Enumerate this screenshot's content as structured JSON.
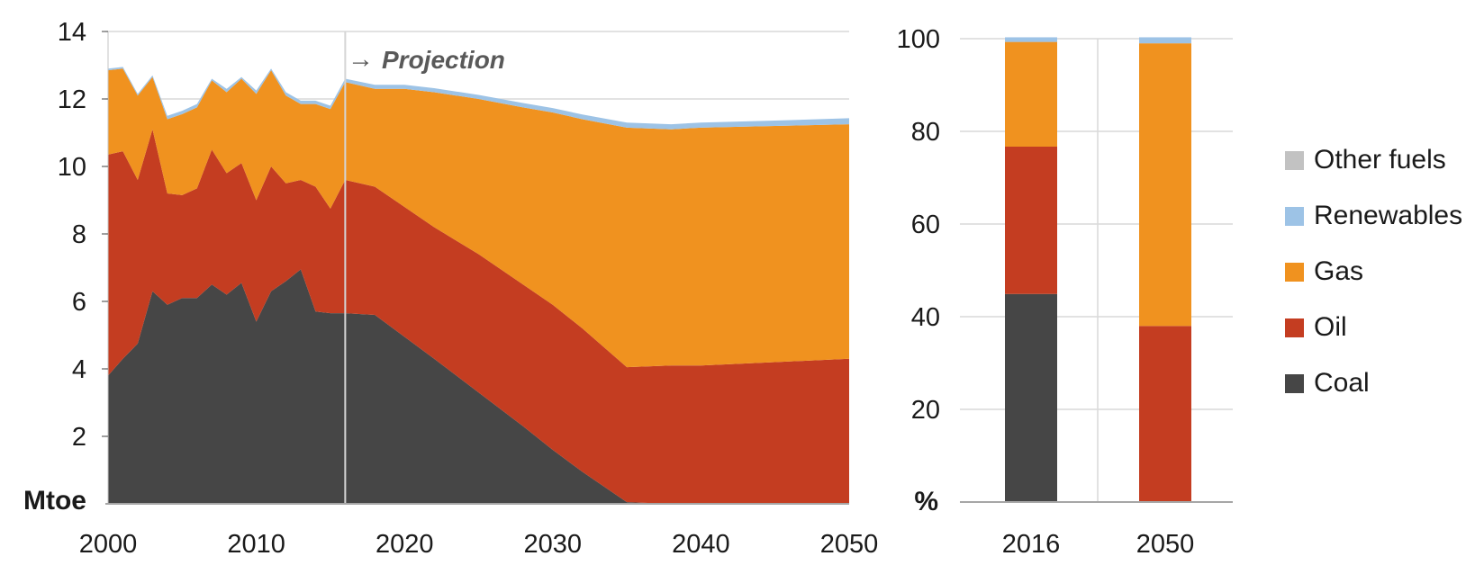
{
  "page": {
    "background": "#FFFFFF"
  },
  "colors": {
    "coal": "#464646",
    "oil": "#C43D21",
    "gas": "#F0921F",
    "renewables": "#9DC3E6",
    "other_fuels": "#C2C2C2",
    "grid": "#D9D9D9",
    "axis": "#A6A6A6",
    "y_axis_line": "#C6C6C6",
    "tick": "#808080",
    "projection_line": "#D5D5D5",
    "text": "#1A1A1A",
    "annotation": "#595959"
  },
  "left_chart": {
    "unit_label": "Mtoe",
    "annotation_arrow": "→",
    "annotation_label": "Projection"
  },
  "right_chart": {
    "unit_label": "%"
  },
  "legend": {
    "position": "right",
    "items": [
      {
        "label": "Other fuels",
        "color": "#C2C2C2"
      },
      {
        "label": "Renewables",
        "color": "#9DC3E6"
      },
      {
        "label": "Gas",
        "color": "#F0921F"
      },
      {
        "label": "Oil",
        "color": "#C43D21"
      },
      {
        "label": "Coal",
        "color": "#464646"
      }
    ]
  },
  "chart_data": [
    {
      "type": "area",
      "stacked": true,
      "title": "",
      "xlabel": "",
      "ylabel": "Mtoe",
      "ylim": [
        0,
        14
      ],
      "yticks": [
        2,
        4,
        6,
        8,
        10,
        12,
        14
      ],
      "xticks": [
        2000,
        2010,
        2020,
        2030,
        2040,
        2050
      ],
      "grid": "horizontal",
      "annotation": "→ Projection",
      "projection_start_year": 2016,
      "x": [
        2000,
        2001,
        2002,
        2003,
        2004,
        2005,
        2006,
        2007,
        2008,
        2009,
        2010,
        2011,
        2012,
        2013,
        2014,
        2015,
        2016,
        2018,
        2020,
        2022,
        2025,
        2028,
        2030,
        2032,
        2035,
        2038,
        2040,
        2045,
        2050
      ],
      "series": [
        {
          "name": "Coal",
          "color": "#464646",
          "values": [
            3.8,
            4.3,
            4.75,
            6.3,
            5.9,
            6.1,
            6.1,
            6.5,
            6.2,
            6.55,
            5.4,
            6.3,
            6.6,
            6.95,
            5.7,
            5.65,
            5.65,
            5.6,
            4.95,
            4.3,
            3.3,
            2.3,
            1.6,
            0.95,
            0.05,
            0,
            0,
            0,
            0
          ]
        },
        {
          "name": "Oil",
          "color": "#C43D21",
          "values": [
            6.55,
            6.15,
            4.85,
            4.8,
            3.3,
            3.05,
            3.25,
            4.0,
            3.6,
            3.55,
            3.6,
            3.7,
            2.9,
            2.65,
            3.7,
            3.1,
            3.95,
            3.8,
            3.85,
            3.9,
            4.1,
            4.2,
            4.3,
            4.25,
            4.0,
            4.1,
            4.1,
            4.2,
            4.3
          ]
        },
        {
          "name": "Gas",
          "color": "#F0921F",
          "values": [
            2.5,
            2.45,
            2.5,
            1.55,
            2.2,
            2.4,
            2.4,
            2.05,
            2.4,
            2.5,
            3.15,
            2.85,
            2.6,
            2.25,
            2.45,
            2.95,
            2.9,
            2.9,
            3.5,
            4.0,
            4.6,
            5.25,
            5.7,
            6.2,
            7.1,
            7.0,
            7.05,
            7.0,
            6.95
          ]
        },
        {
          "name": "Renewables",
          "color": "#9DC3E6",
          "values": [
            0.05,
            0.05,
            0.05,
            0.05,
            0.1,
            0.1,
            0.1,
            0.05,
            0.1,
            0.05,
            0.1,
            0.05,
            0.1,
            0.1,
            0.1,
            0.1,
            0.1,
            0.12,
            0.12,
            0.12,
            0.12,
            0.13,
            0.13,
            0.14,
            0.15,
            0.15,
            0.15,
            0.16,
            0.18
          ]
        },
        {
          "name": "Other fuels",
          "color": "#C2C2C2",
          "values": [
            0,
            0,
            0,
            0,
            0,
            0,
            0,
            0,
            0,
            0,
            0,
            0,
            0,
            0,
            0,
            0,
            0,
            0,
            0,
            0,
            0,
            0,
            0,
            0,
            0,
            0,
            0,
            0,
            0
          ]
        }
      ]
    },
    {
      "type": "bar",
      "stacked": true,
      "title": "",
      "xlabel": "",
      "ylabel": "%",
      "ylim": [
        0,
        100
      ],
      "yticks": [
        20,
        40,
        60,
        80,
        100
      ],
      "grid": "horizontal",
      "categories": [
        "2016",
        "2050"
      ],
      "series": [
        {
          "name": "Coal",
          "color": "#464646",
          "values": [
            44.9,
            0
          ]
        },
        {
          "name": "Oil",
          "color": "#C43D21",
          "values": [
            31.8,
            38.0
          ]
        },
        {
          "name": "Gas",
          "color": "#F0921F",
          "values": [
            22.6,
            61.0
          ]
        },
        {
          "name": "Renewables",
          "color": "#9DC3E6",
          "values": [
            1.0,
            1.3
          ]
        },
        {
          "name": "Other fuels",
          "color": "#C2C2C2",
          "values": [
            0,
            0
          ]
        }
      ]
    }
  ]
}
